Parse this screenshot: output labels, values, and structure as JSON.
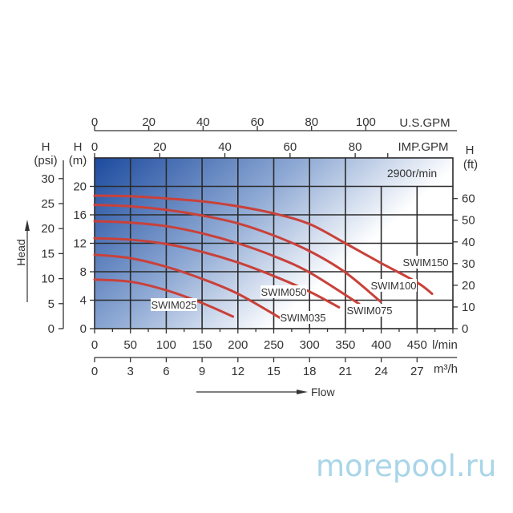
{
  "chart_data": {
    "type": "line",
    "speed_label": "2900r/min",
    "x_axis": {
      "label": "Flow",
      "unit": "l/min",
      "ticks": [
        0,
        50,
        100,
        150,
        200,
        250,
        300,
        350,
        400,
        450
      ],
      "range": [
        0,
        500
      ]
    },
    "x_axis_m3h": {
      "unit": "m³/h",
      "ticks": [
        0,
        3,
        6,
        9,
        12,
        15,
        18,
        21,
        24,
        27
      ]
    },
    "x_axis_usgpm": {
      "unit": "U.S.GPM",
      "ticks": [
        0,
        20,
        40,
        60,
        80,
        100
      ]
    },
    "x_axis_impgpm": {
      "unit": "IMP.GPM",
      "ticks": [
        0,
        20,
        40,
        60,
        80
      ]
    },
    "y_axis": {
      "label": "Head",
      "header": "H",
      "unit": "(m)",
      "ticks": [
        0,
        4,
        8,
        12,
        16,
        20
      ],
      "range": [
        0,
        24
      ]
    },
    "y_axis_psi": {
      "header": "H",
      "unit": "(psi)",
      "ticks": [
        0,
        5,
        10,
        15,
        20,
        25,
        30
      ]
    },
    "y_axis_ft": {
      "header": "H",
      "unit": "(ft)",
      "ticks": [
        0,
        10,
        20,
        30,
        40,
        50,
        60
      ]
    },
    "grid": true,
    "background_gradient": [
      "#1c4a9e",
      "#ffffff"
    ],
    "curve_color": "#c9413a",
    "series": [
      {
        "name": "SWIM025",
        "x": [
          0,
          50,
          100,
          150,
          193
        ],
        "y": [
          6.9,
          6.6,
          5.4,
          3.6,
          1.7
        ]
      },
      {
        "name": "SWIM035",
        "x": [
          0,
          50,
          100,
          150,
          200,
          259
        ],
        "y": [
          10.4,
          9.9,
          8.7,
          7.0,
          4.9,
          1.5
        ]
      },
      {
        "name": "SWIM050",
        "x": [
          0,
          50,
          100,
          150,
          200,
          250,
          300,
          341
        ],
        "y": [
          12.7,
          12.5,
          11.9,
          10.8,
          9.3,
          7.4,
          5.2,
          3.0
        ]
      },
      {
        "name": "SWIM075",
        "x": [
          0,
          50,
          100,
          150,
          200,
          250,
          300,
          369
        ],
        "y": [
          15.1,
          14.9,
          14.4,
          13.4,
          12.0,
          10.2,
          7.9,
          3.5
        ]
      },
      {
        "name": "SWIM100",
        "x": [
          0,
          50,
          100,
          150,
          200,
          250,
          300,
          350,
          399
        ],
        "y": [
          17.4,
          17.2,
          16.7,
          15.9,
          14.8,
          13.1,
          10.9,
          7.9,
          3.8
        ]
      },
      {
        "name": "SWIM150",
        "x": [
          0,
          50,
          100,
          150,
          200,
          250,
          300,
          350,
          400,
          450,
          471
        ],
        "y": [
          18.7,
          18.6,
          18.3,
          17.9,
          17.2,
          16.2,
          14.7,
          12.0,
          9.2,
          6.5,
          4.9
        ]
      }
    ]
  },
  "watermark": "morepool.ru"
}
